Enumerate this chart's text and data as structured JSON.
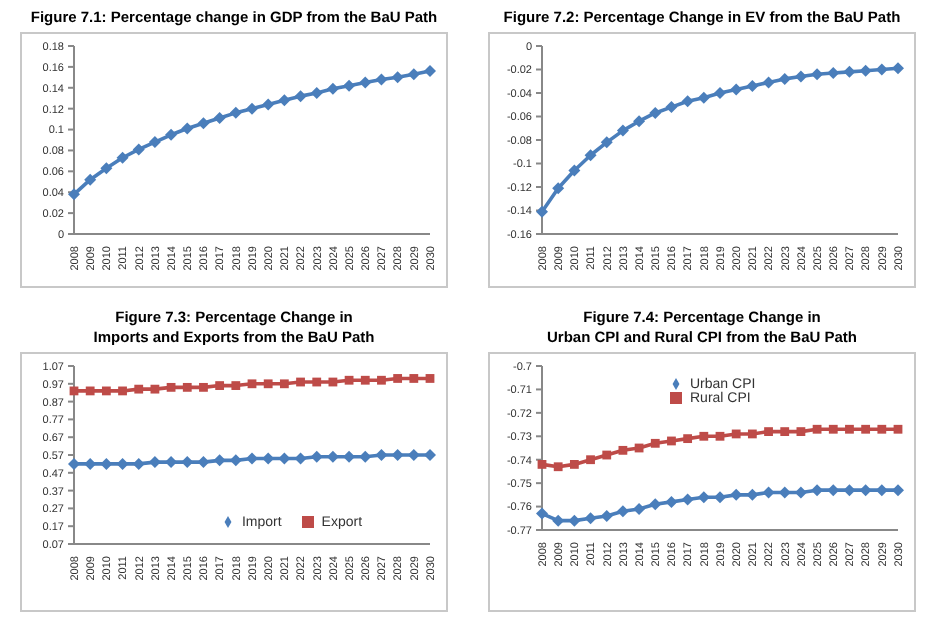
{
  "chart_data": [
    {
      "type": "line",
      "title": "Figure 7.1: Percentage change in GDP from the BaU Path",
      "categories": [
        "2008",
        "2009",
        "2010",
        "2011",
        "2012",
        "2013",
        "2014",
        "2015",
        "2016",
        "2017",
        "2018",
        "2019",
        "2020",
        "2021",
        "2022",
        "2023",
        "2024",
        "2025",
        "2026",
        "2027",
        "2028",
        "2029",
        "2030"
      ],
      "series": [
        {
          "color": "#4a7ebb",
          "marker": "diamond",
          "values": [
            0.038,
            0.052,
            0.063,
            0.073,
            0.081,
            0.088,
            0.095,
            0.101,
            0.106,
            0.111,
            0.116,
            0.12,
            0.124,
            0.128,
            0.132,
            0.135,
            0.139,
            0.142,
            0.145,
            0.148,
            0.15,
            0.153,
            0.156
          ]
        }
      ],
      "ylim": [
        0,
        0.18
      ],
      "yticks": [
        0,
        0.02,
        0.04,
        0.06,
        0.08,
        0.1,
        0.12,
        0.14,
        0.16,
        0.18
      ],
      "grid": false,
      "legend": false
    },
    {
      "type": "line",
      "title": "Figure 7.2: Percentage Change in EV from the BaU Path",
      "categories": [
        "2008",
        "2009",
        "2010",
        "2011",
        "2012",
        "2013",
        "2014",
        "2015",
        "2016",
        "2017",
        "2018",
        "2019",
        "2020",
        "2021",
        "2022",
        "2023",
        "2024",
        "2025",
        "2026",
        "2027",
        "2028",
        "2029",
        "2030"
      ],
      "series": [
        {
          "color": "#4a7ebb",
          "marker": "diamond",
          "values": [
            -0.141,
            -0.121,
            -0.106,
            -0.093,
            -0.082,
            -0.072,
            -0.064,
            -0.057,
            -0.052,
            -0.047,
            -0.044,
            -0.04,
            -0.037,
            -0.034,
            -0.031,
            -0.028,
            -0.026,
            -0.024,
            -0.023,
            -0.022,
            -0.021,
            -0.02,
            -0.019
          ]
        }
      ],
      "ylim": [
        -0.16,
        0
      ],
      "yticks": [
        -0.16,
        -0.14,
        -0.12,
        -0.1,
        -0.08,
        -0.06,
        -0.04,
        -0.02,
        0
      ],
      "grid": false,
      "legend": false
    },
    {
      "type": "line",
      "title": "Figure 7.3: Percentage Change in\nImports and Exports from the BaU Path",
      "categories": [
        "2008",
        "2009",
        "2010",
        "2011",
        "2012",
        "2013",
        "2014",
        "2015",
        "2016",
        "2017",
        "2018",
        "2019",
        "2020",
        "2021",
        "2022",
        "2023",
        "2024",
        "2025",
        "2026",
        "2027",
        "2028",
        "2029",
        "2030"
      ],
      "series": [
        {
          "name": "Import",
          "color": "#4a7ebb",
          "marker": "diamond",
          "values": [
            0.52,
            0.52,
            0.52,
            0.52,
            0.52,
            0.53,
            0.53,
            0.53,
            0.53,
            0.54,
            0.54,
            0.55,
            0.55,
            0.55,
            0.55,
            0.56,
            0.56,
            0.56,
            0.56,
            0.57,
            0.57,
            0.57,
            0.57
          ]
        },
        {
          "name": "Export",
          "color": "#be4b48",
          "marker": "square",
          "values": [
            0.93,
            0.93,
            0.93,
            0.93,
            0.94,
            0.94,
            0.95,
            0.95,
            0.95,
            0.96,
            0.96,
            0.97,
            0.97,
            0.97,
            0.98,
            0.98,
            0.98,
            0.99,
            0.99,
            0.99,
            1.0,
            1.0,
            1.0
          ]
        }
      ],
      "ylim": [
        0.07,
        1.07
      ],
      "yticks": [
        0.07,
        0.17,
        0.27,
        0.37,
        0.47,
        0.57,
        0.67,
        0.77,
        0.87,
        0.97,
        1.07
      ],
      "grid": false,
      "legend": "bottom"
    },
    {
      "type": "line",
      "title": "Figure 7.4: Percentage Change in\nUrban CPI and Rural CPI from the BaU Path",
      "categories": [
        "2008",
        "2009",
        "2010",
        "2011",
        "2012",
        "2013",
        "2014",
        "2015",
        "2016",
        "2017",
        "2018",
        "2019",
        "2020",
        "2021",
        "2022",
        "2023",
        "2024",
        "2025",
        "2026",
        "2027",
        "2028",
        "2029",
        "2030"
      ],
      "series": [
        {
          "name": "Urban CPI",
          "color": "#4a7ebb",
          "marker": "diamond",
          "values": [
            -0.763,
            -0.766,
            -0.766,
            -0.765,
            -0.764,
            -0.762,
            -0.761,
            -0.759,
            -0.758,
            -0.757,
            -0.756,
            -0.756,
            -0.755,
            -0.755,
            -0.754,
            -0.754,
            -0.754,
            -0.753,
            -0.753,
            -0.753,
            -0.753,
            -0.753,
            -0.753
          ]
        },
        {
          "name": "Rural CPI",
          "color": "#be4b48",
          "marker": "square",
          "values": [
            -0.742,
            -0.743,
            -0.742,
            -0.74,
            -0.738,
            -0.736,
            -0.735,
            -0.733,
            -0.732,
            -0.731,
            -0.73,
            -0.73,
            -0.729,
            -0.729,
            -0.728,
            -0.728,
            -0.728,
            -0.727,
            -0.727,
            -0.727,
            -0.727,
            -0.727,
            -0.727
          ]
        }
      ],
      "ylim": [
        -0.77,
        -0.7
      ],
      "yticks": [
        -0.77,
        -0.76,
        -0.75,
        -0.74,
        -0.73,
        -0.72,
        -0.71,
        -0.7
      ],
      "grid": false,
      "legend": "top left"
    }
  ]
}
